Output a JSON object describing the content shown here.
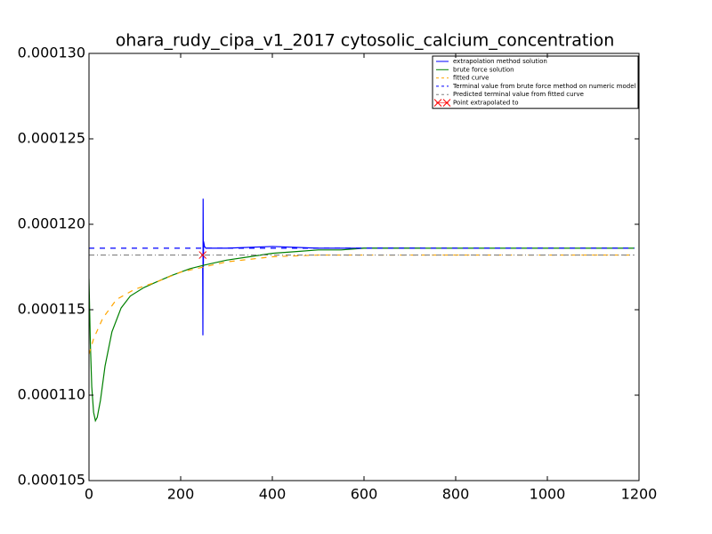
{
  "chart_data": {
    "type": "line",
    "title": "ohara_rudy_cipa_v1_2017 cytosolic_calcium_concentration",
    "xlim": [
      0,
      1200
    ],
    "xticks": [
      0,
      200,
      400,
      600,
      800,
      1000,
      1200
    ],
    "ylim": [
      0.000105,
      0.00013
    ],
    "yticks": [
      {
        "value": 0.000105,
        "label": "0.000105"
      },
      {
        "value": 0.00011,
        "label": "0.000110"
      },
      {
        "value": 0.000115,
        "label": "0.000115"
      },
      {
        "value": 0.00012,
        "label": "0.000120"
      },
      {
        "value": 0.000125,
        "label": "0.000125"
      },
      {
        "value": 0.00013,
        "label": "0.000130"
      }
    ],
    "legend": "upper right",
    "series": [
      {
        "name": "extrapolation method solution",
        "color": "#0000ff",
        "style": "solid",
        "x": [
          248,
          248.5,
          249,
          249.5,
          250,
          252,
          255,
          260,
          270,
          300,
          400,
          500,
          600,
          700,
          725
        ],
        "values": [
          0.0001176,
          0.0001135,
          0.0001215,
          0.0001175,
          0.000119,
          0.0001187,
          0.0001186,
          0.0001186,
          0.0001186,
          0.0001186,
          0.0001187,
          0.0001186,
          0.0001186,
          0.0001186,
          0.0001186
        ]
      },
      {
        "name": "brute force solution",
        "color": "#008000",
        "style": "solid",
        "x": [
          0,
          3,
          6,
          10,
          14,
          18,
          25,
          35,
          50,
          70,
          90,
          120,
          145,
          180,
          220,
          250,
          300,
          350,
          400,
          450,
          500,
          550,
          600,
          700,
          800,
          900,
          1000,
          1100,
          1190
        ],
        "values": [
          0.0001168,
          0.000113,
          0.0001105,
          0.000109,
          0.0001085,
          0.0001087,
          0.0001097,
          0.0001117,
          0.0001137,
          0.0001151,
          0.0001158,
          0.0001163,
          0.0001166,
          0.000117,
          0.0001174,
          0.0001176,
          0.0001179,
          0.0001181,
          0.0001183,
          0.0001184,
          0.0001185,
          0.0001185,
          0.0001186,
          0.0001186,
          0.0001186,
          0.0001186,
          0.0001186,
          0.0001186,
          0.0001186
        ]
      },
      {
        "name": "fitted curve",
        "color": "#ffa500",
        "style": "dashed",
        "x": [
          0,
          10,
          30,
          60,
          100,
          145,
          200,
          250,
          300,
          400,
          500,
          600,
          800,
          1000,
          1190
        ],
        "values": [
          0.0001124,
          0.0001133,
          0.0001145,
          0.0001156,
          0.0001162,
          0.0001166,
          0.0001172,
          0.0001175,
          0.0001178,
          0.0001181,
          0.0001182,
          0.0001182,
          0.0001182,
          0.0001182,
          0.0001182
        ]
      },
      {
        "name": "Terminal value from brute force method on numeric model",
        "color": "#0000ff",
        "style": "dashed",
        "x": [
          0,
          1190
        ],
        "values": [
          0.0001186,
          0.0001186
        ]
      },
      {
        "name": "Predicted terminal value from fitted curve",
        "color": "#808080",
        "style": "dashdot",
        "x": [
          0,
          1190
        ],
        "values": [
          0.0001182,
          0.0001182
        ]
      },
      {
        "name": "Point extrapolated to",
        "color": "#ff0000",
        "style": "none",
        "marker": "x",
        "x": [
          248
        ],
        "values": [
          0.0001182
        ]
      }
    ]
  }
}
